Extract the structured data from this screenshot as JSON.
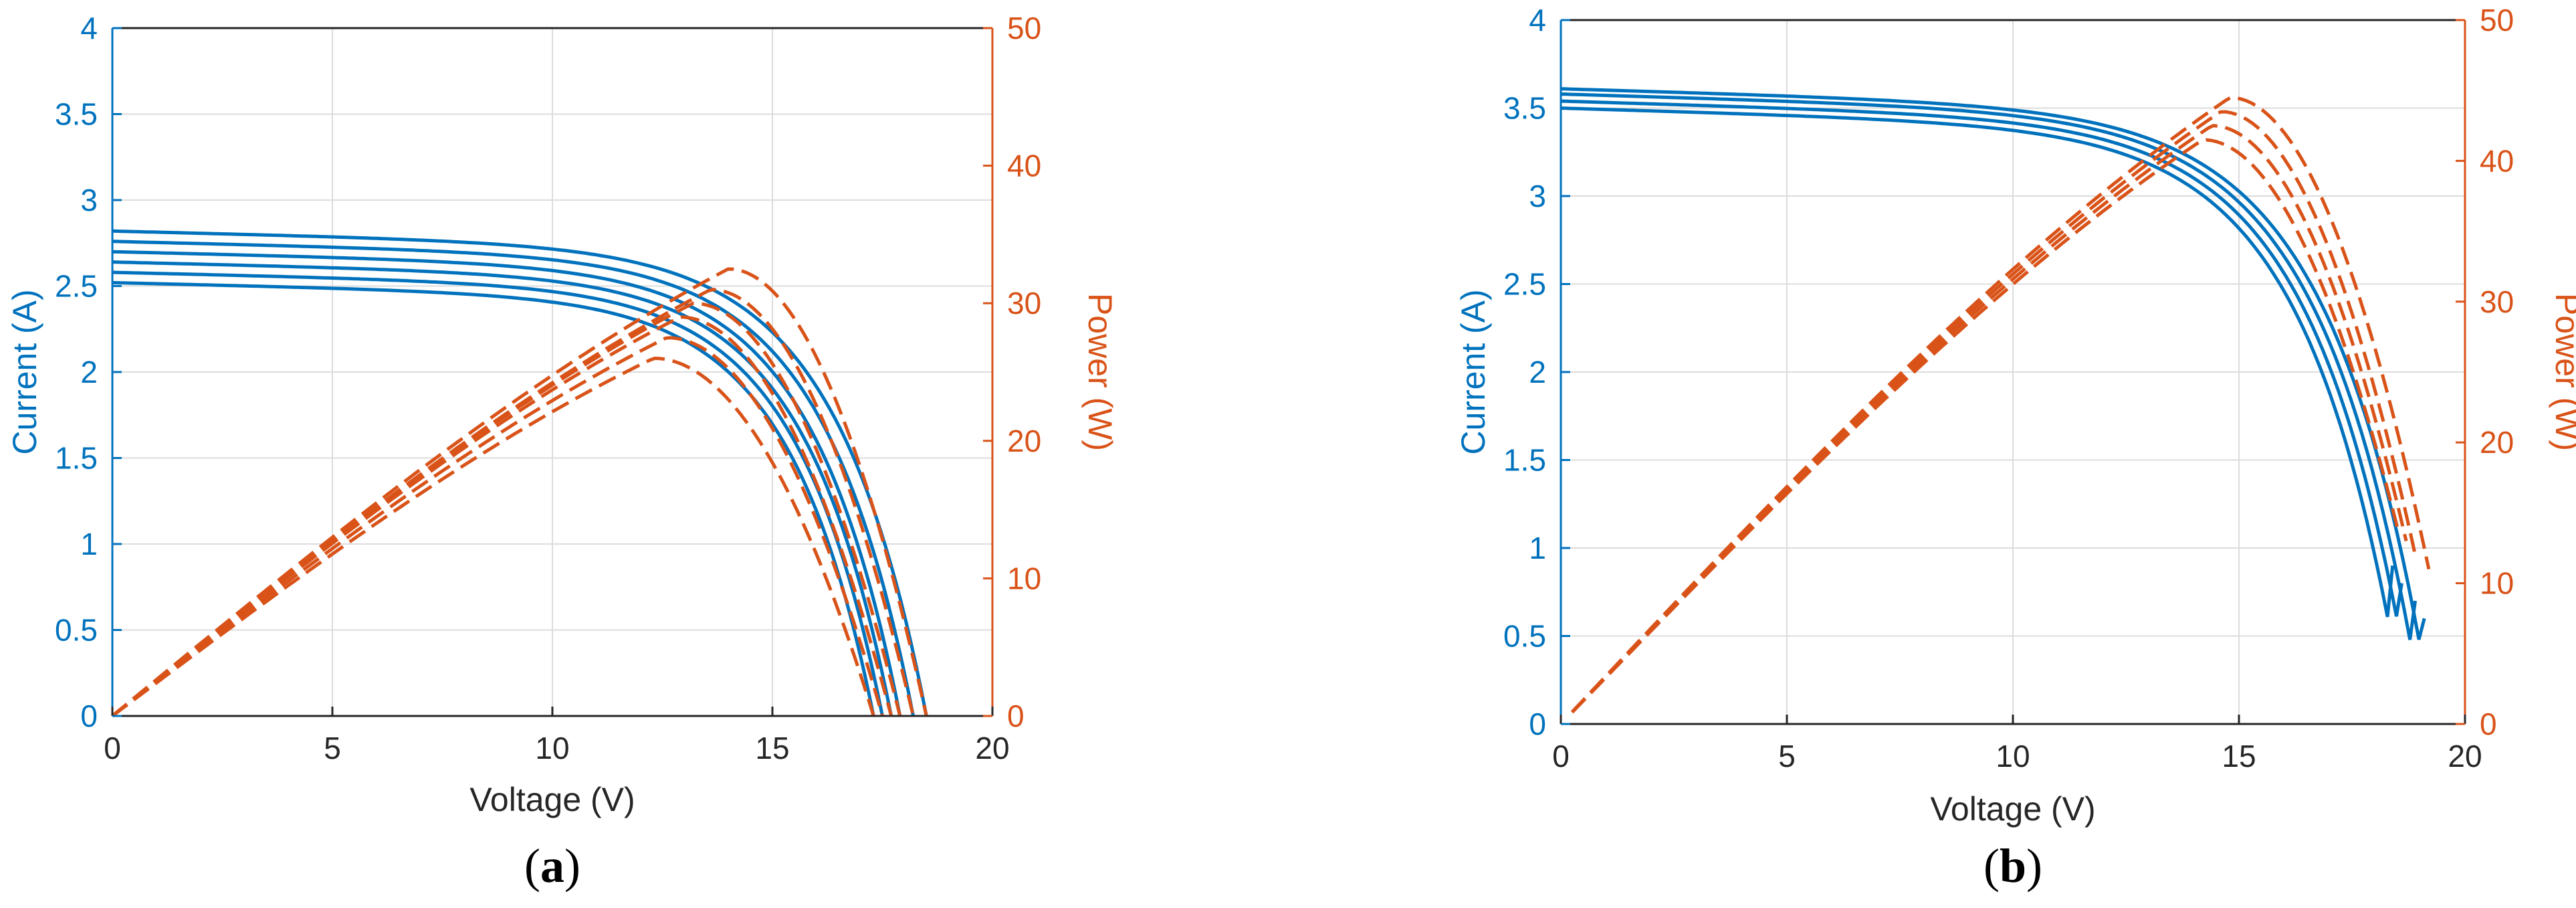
{
  "colors": {
    "current": "#0072BD",
    "power": "#D95319",
    "grid": "#DCDCDC",
    "axis": "#262626"
  },
  "chart_data": [
    {
      "type": "line",
      "panel": "a",
      "panel_label": "a",
      "xlabel": "Voltage (V)",
      "ylabel": "Current (A)",
      "y2label": "Power (W)",
      "xlim": [
        0,
        20
      ],
      "ylim": [
        0,
        4
      ],
      "y2lim": [
        0,
        50
      ],
      "xticks": [
        "0",
        "5",
        "10",
        "15",
        "20"
      ],
      "yticks": [
        "0",
        "0.5",
        "1",
        "1.5",
        "2",
        "2.5",
        "3",
        "3.5",
        "4"
      ],
      "y2ticks": [
        "0",
        "10",
        "20",
        "30",
        "40",
        "50"
      ],
      "grid": true,
      "series": [
        {
          "axis": "left",
          "style": "solid",
          "isc": 2.52,
          "voc": 17.3
        },
        {
          "axis": "left",
          "style": "solid",
          "isc": 2.58,
          "voc": 17.5
        },
        {
          "axis": "left",
          "style": "solid",
          "isc": 2.64,
          "voc": 17.7
        },
        {
          "axis": "left",
          "style": "solid",
          "isc": 2.7,
          "voc": 17.9
        },
        {
          "axis": "left",
          "style": "solid",
          "isc": 2.76,
          "voc": 18.2
        },
        {
          "axis": "left",
          "style": "solid",
          "isc": 2.82,
          "voc": 18.5
        },
        {
          "axis": "right",
          "style": "dashed",
          "pmax": 26.0,
          "vmp": 12.3,
          "voc": 17.3
        },
        {
          "axis": "right",
          "style": "dashed",
          "pmax": 27.5,
          "vmp": 12.6,
          "voc": 17.5
        },
        {
          "axis": "right",
          "style": "dashed",
          "pmax": 29.0,
          "vmp": 12.9,
          "voc": 17.7
        },
        {
          "axis": "right",
          "style": "dashed",
          "pmax": 30.0,
          "vmp": 13.2,
          "voc": 17.9
        },
        {
          "axis": "right",
          "style": "dashed",
          "pmax": 31.0,
          "vmp": 13.6,
          "voc": 18.2
        },
        {
          "axis": "right",
          "style": "dashed",
          "pmax": 32.5,
          "vmp": 14.0,
          "voc": 18.5
        }
      ]
    },
    {
      "type": "line",
      "panel": "b",
      "panel_label": "b",
      "xlabel": "Voltage (V)",
      "ylabel": "Current (A)",
      "y2label": "Power (W)",
      "xlim": [
        0,
        20
      ],
      "ylim": [
        0,
        4
      ],
      "y2lim": [
        0,
        50
      ],
      "xticks": [
        "0",
        "5",
        "10",
        "15",
        "20"
      ],
      "yticks": [
        "0",
        "0.5",
        "1",
        "1.5",
        "2",
        "2.5",
        "3",
        "3.5",
        "4"
      ],
      "y2ticks": [
        "0",
        "10",
        "20",
        "30",
        "40",
        "50"
      ],
      "grid": true,
      "series": [
        {
          "axis": "left",
          "style": "solid",
          "isc": 3.5,
          "voc": 18.7,
          "vend": 18.4,
          "iend": 0.9
        },
        {
          "axis": "left",
          "style": "solid",
          "isc": 3.54,
          "voc": 18.9,
          "vend": 18.6,
          "iend": 0.8
        },
        {
          "axis": "left",
          "style": "solid",
          "isc": 3.58,
          "voc": 19.1,
          "vend": 18.9,
          "iend": 0.7
        },
        {
          "axis": "left",
          "style": "solid",
          "isc": 3.61,
          "voc": 19.3,
          "vend": 19.1,
          "iend": 0.6
        },
        {
          "axis": "right",
          "style": "dashed",
          "pmax": 41.5,
          "vmp": 14.2,
          "voc": 18.7,
          "vend": 18.5,
          "pend": 14.0
        },
        {
          "axis": "right",
          "style": "dashed",
          "pmax": 42.5,
          "vmp": 14.4,
          "voc": 18.9,
          "vend": 18.7,
          "pend": 13.0
        },
        {
          "axis": "right",
          "style": "dashed",
          "pmax": 43.5,
          "vmp": 14.6,
          "voc": 19.1,
          "vend": 18.9,
          "pend": 12.0
        },
        {
          "axis": "right",
          "style": "dashed",
          "pmax": 44.5,
          "vmp": 14.8,
          "voc": 19.3,
          "vend": 19.2,
          "pend": 11.0
        }
      ]
    }
  ]
}
